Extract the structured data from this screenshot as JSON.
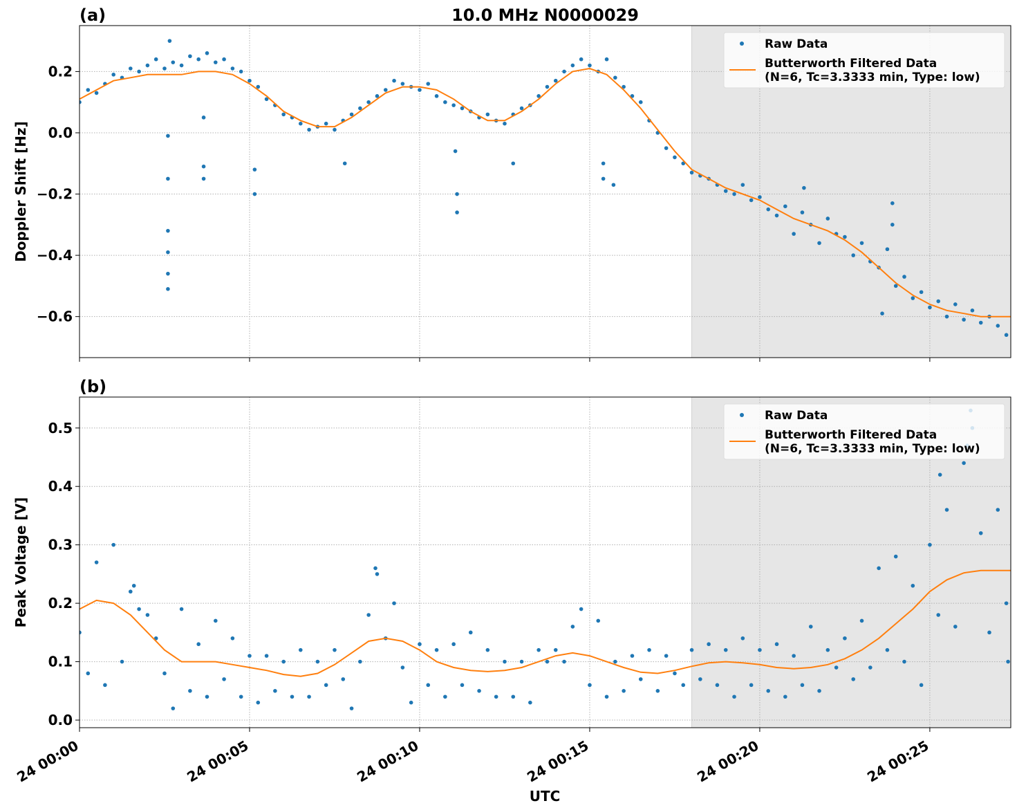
{
  "chart_data": [
    {
      "type": "scatter-line",
      "panel_label": "(a)",
      "title": "10.0 MHz N0000029",
      "y_label": "Doppler Shift [Hz]",
      "xlim": [
        0,
        27.38
      ],
      "ylim": [
        -0.734,
        0.35
      ],
      "xticks": [
        0,
        5,
        10,
        15,
        20,
        25
      ],
      "yticks": [
        {
          "value": -0.6,
          "label": "−0.6"
        },
        {
          "value": -0.4,
          "label": "−0.4"
        },
        {
          "value": -0.2,
          "label": "−0.2"
        },
        {
          "value": 0,
          "label": "0.0"
        },
        0.2
      ],
      "grid": true,
      "legend": "upper right",
      "highlight_xrange": [
        18,
        27.38
      ],
      "series": [
        {
          "name": "Raw Data",
          "color": "#1f77b4",
          "marker": "dot",
          "x": [
            0,
            0.25,
            0.5,
            0.75,
            1,
            1.25,
            1.5,
            1.75,
            2,
            2.25,
            2.5,
            2.75,
            3,
            3.25,
            3.5,
            3.75,
            4,
            4.25,
            4.5,
            4.75,
            5,
            5.25,
            5.5,
            5.75,
            6,
            6.25,
            6.5,
            6.75,
            7,
            7.25,
            7.5,
            7.75,
            8,
            8.25,
            8.5,
            8.75,
            9,
            9.25,
            9.5,
            9.75,
            10,
            10.25,
            10.5,
            10.75,
            11,
            11.25,
            11.5,
            11.75,
            12,
            12.25,
            12.5,
            12.75,
            13,
            13.25,
            13.5,
            13.75,
            14,
            14.25,
            14.5,
            14.75,
            15,
            15.25,
            15.5,
            15.75,
            16,
            16.25,
            16.5,
            16.75,
            17,
            17.25,
            17.5,
            17.75,
            18,
            18.25,
            18.5,
            18.75,
            19,
            19.25,
            19.5,
            19.75,
            20,
            20.25,
            20.5,
            20.75,
            21,
            21.25,
            21.5,
            21.75,
            22,
            22.25,
            22.5,
            22.75,
            23,
            23.25,
            23.5,
            23.75,
            24,
            24.25,
            24.5,
            24.75,
            25,
            25.25,
            25.5,
            25.75,
            26,
            26.25,
            26.5,
            26.75,
            27,
            27.25,
            2.6,
            2.6,
            2.6,
            2.6,
            2.6,
            2.6,
            3.65,
            3.65,
            3.65,
            5.15,
            5.15,
            7.8,
            11.1,
            11.1,
            11.05,
            12.75,
            15.4,
            15.4,
            15.7,
            21.3,
            23.6,
            23.9,
            23.9,
            2.65
          ],
          "values": [
            0.1,
            0.14,
            0.13,
            0.16,
            0.19,
            0.18,
            0.21,
            0.2,
            0.22,
            0.24,
            0.21,
            0.23,
            0.22,
            0.25,
            0.24,
            0.26,
            0.23,
            0.24,
            0.21,
            0.2,
            0.17,
            0.15,
            0.11,
            0.09,
            0.06,
            0.05,
            0.03,
            0.01,
            0.02,
            0.03,
            0.01,
            0.04,
            0.06,
            0.08,
            0.1,
            0.12,
            0.14,
            0.17,
            0.16,
            0.15,
            0.14,
            0.16,
            0.12,
            0.1,
            0.09,
            0.08,
            0.07,
            0.05,
            0.06,
            0.04,
            0.03,
            0.06,
            0.08,
            0.09,
            0.12,
            0.15,
            0.17,
            0.2,
            0.22,
            0.24,
            0.22,
            0.2,
            0.24,
            0.18,
            0.15,
            0.12,
            0.1,
            0.04,
            0.0,
            -0.05,
            -0.08,
            -0.1,
            -0.13,
            -0.14,
            -0.15,
            -0.17,
            -0.19,
            -0.2,
            -0.17,
            -0.22,
            -0.21,
            -0.25,
            -0.27,
            -0.24,
            -0.33,
            -0.26,
            -0.3,
            -0.36,
            -0.28,
            -0.33,
            -0.34,
            -0.4,
            -0.36,
            -0.42,
            -0.44,
            -0.38,
            -0.5,
            -0.47,
            -0.54,
            -0.52,
            -0.57,
            -0.55,
            -0.6,
            -0.56,
            -0.61,
            -0.58,
            -0.62,
            -0.6,
            -0.63,
            -0.66,
            -0.15,
            -0.32,
            -0.39,
            -0.46,
            -0.51,
            -0.01,
            -0.11,
            -0.15,
            0.05,
            -0.12,
            -0.2,
            -0.1,
            -0.2,
            -0.26,
            -0.06,
            -0.1,
            -0.1,
            -0.15,
            -0.17,
            -0.18,
            -0.59,
            -0.23,
            -0.3,
            0.3
          ]
        },
        {
          "name": "Butterworth Filtered Data\n(N=6, Tc=3.3333 min, Type: low)",
          "color": "#ff7f0e",
          "marker": "line",
          "x": [
            0,
            0.5,
            1,
            1.5,
            2,
            2.5,
            3,
            3.5,
            4,
            4.5,
            5,
            5.5,
            6,
            6.5,
            7,
            7.5,
            8,
            8.5,
            9,
            9.5,
            10,
            10.5,
            11,
            11.5,
            12,
            12.5,
            13,
            13.5,
            14,
            14.5,
            15,
            15.5,
            16,
            16.5,
            17,
            17.5,
            18,
            18.5,
            19,
            19.5,
            20,
            20.5,
            21,
            21.5,
            22,
            22.5,
            23,
            23.5,
            24,
            24.5,
            25,
            25.5,
            26,
            26.5,
            27,
            27.38
          ],
          "values": [
            0.11,
            0.14,
            0.17,
            0.18,
            0.19,
            0.19,
            0.19,
            0.2,
            0.2,
            0.19,
            0.16,
            0.12,
            0.07,
            0.04,
            0.02,
            0.02,
            0.05,
            0.09,
            0.13,
            0.15,
            0.15,
            0.14,
            0.11,
            0.07,
            0.04,
            0.04,
            0.07,
            0.11,
            0.16,
            0.2,
            0.21,
            0.19,
            0.14,
            0.08,
            0.01,
            -0.06,
            -0.12,
            -0.15,
            -0.18,
            -0.2,
            -0.22,
            -0.25,
            -0.28,
            -0.3,
            -0.32,
            -0.35,
            -0.39,
            -0.44,
            -0.49,
            -0.53,
            -0.56,
            -0.58,
            -0.59,
            -0.6,
            -0.6,
            -0.6
          ]
        }
      ]
    },
    {
      "type": "scatter-line",
      "panel_label": "(b)",
      "y_label": "Peak Voltage [V]",
      "x_label": "UTC",
      "xlim": [
        0,
        27.38
      ],
      "ylim": [
        -0.013,
        0.553
      ],
      "xticks": [
        {
          "value": 0,
          "label": "24 00:00"
        },
        {
          "value": 5,
          "label": "24 00:05"
        },
        {
          "value": 10,
          "label": "24 00:10"
        },
        {
          "value": 15,
          "label": "24 00:15"
        },
        {
          "value": 20,
          "label": "24 00:20"
        },
        {
          "value": 25,
          "label": "24 00:25"
        }
      ],
      "yticks": [
        {
          "value": 0,
          "label": "0.0"
        },
        0.1,
        0.2,
        0.3,
        0.4,
        0.5
      ],
      "grid": true,
      "legend": "upper right",
      "highlight_xrange": [
        18,
        27.38
      ],
      "series": [
        {
          "name": "Raw Data",
          "color": "#1f77b4",
          "marker": "dot",
          "x": [
            0,
            0.25,
            0.5,
            0.75,
            1,
            1.25,
            1.5,
            1.75,
            2,
            2.25,
            2.5,
            2.75,
            3,
            3.25,
            3.5,
            3.75,
            4,
            4.25,
            4.5,
            4.75,
            5,
            5.25,
            5.5,
            5.75,
            6,
            6.25,
            6.5,
            6.75,
            7,
            7.25,
            7.5,
            7.75,
            8,
            8.25,
            8.5,
            8.75,
            9,
            9.25,
            9.5,
            9.75,
            10,
            10.25,
            10.5,
            10.75,
            11,
            11.25,
            11.5,
            11.75,
            12,
            12.25,
            12.5,
            12.75,
            13,
            13.25,
            13.5,
            13.75,
            14,
            14.25,
            14.5,
            14.75,
            15,
            15.25,
            15.5,
            15.75,
            16,
            16.25,
            16.5,
            16.75,
            17,
            17.25,
            17.5,
            17.75,
            18,
            18.25,
            18.5,
            18.75,
            19,
            19.25,
            19.5,
            19.75,
            20,
            20.25,
            20.5,
            20.75,
            21,
            21.25,
            21.5,
            21.75,
            22,
            22.25,
            22.5,
            22.75,
            23,
            23.25,
            23.5,
            23.75,
            24,
            24.25,
            24.5,
            24.75,
            25,
            25.25,
            25.5,
            25.75,
            26,
            26.25,
            26.5,
            26.75,
            27,
            27.25,
            25.3,
            26.2,
            26.1,
            27.3,
            1.6,
            8.7
          ],
          "values": [
            0.15,
            0.08,
            0.27,
            0.06,
            0.3,
            0.1,
            0.22,
            0.19,
            0.18,
            0.14,
            0.08,
            0.02,
            0.19,
            0.05,
            0.13,
            0.04,
            0.17,
            0.07,
            0.14,
            0.04,
            0.11,
            0.03,
            0.11,
            0.05,
            0.1,
            0.04,
            0.12,
            0.04,
            0.1,
            0.06,
            0.12,
            0.07,
            0.02,
            0.1,
            0.18,
            0.25,
            0.14,
            0.2,
            0.09,
            0.03,
            0.13,
            0.06,
            0.12,
            0.04,
            0.13,
            0.06,
            0.15,
            0.05,
            0.12,
            0.04,
            0.1,
            0.04,
            0.1,
            0.03,
            0.12,
            0.1,
            0.12,
            0.1,
            0.16,
            0.19,
            0.06,
            0.17,
            0.04,
            0.1,
            0.05,
            0.11,
            0.07,
            0.12,
            0.05,
            0.11,
            0.08,
            0.06,
            0.12,
            0.07,
            0.13,
            0.06,
            0.12,
            0.04,
            0.14,
            0.06,
            0.12,
            0.05,
            0.13,
            0.04,
            0.11,
            0.06,
            0.16,
            0.05,
            0.12,
            0.09,
            0.14,
            0.07,
            0.17,
            0.09,
            0.26,
            0.12,
            0.28,
            0.1,
            0.23,
            0.06,
            0.3,
            0.18,
            0.36,
            0.16,
            0.44,
            0.5,
            0.32,
            0.15,
            0.36,
            0.2,
            0.42,
            0.53,
            0.47,
            0.1,
            0.23,
            0.26
          ]
        },
        {
          "name": "Butterworth Filtered Data\n(N=6, Tc=3.3333 min, Type: low)",
          "color": "#ff7f0e",
          "marker": "line",
          "x": [
            0,
            0.5,
            1,
            1.5,
            2,
            2.5,
            3,
            3.5,
            4,
            4.5,
            5,
            5.5,
            6,
            6.5,
            7,
            7.5,
            8,
            8.5,
            9,
            9.5,
            10,
            10.5,
            11,
            11.5,
            12,
            12.5,
            13,
            13.5,
            14,
            14.5,
            15,
            15.5,
            16,
            16.5,
            17,
            17.5,
            18,
            18.5,
            19,
            19.5,
            20,
            20.5,
            21,
            21.5,
            22,
            22.5,
            23,
            23.5,
            24,
            24.5,
            25,
            25.5,
            26,
            26.5,
            27,
            27.38
          ],
          "values": [
            0.19,
            0.205,
            0.2,
            0.18,
            0.15,
            0.12,
            0.1,
            0.1,
            0.1,
            0.095,
            0.09,
            0.085,
            0.078,
            0.075,
            0.08,
            0.095,
            0.115,
            0.135,
            0.14,
            0.135,
            0.12,
            0.1,
            0.09,
            0.085,
            0.083,
            0.085,
            0.09,
            0.1,
            0.11,
            0.115,
            0.11,
            0.1,
            0.09,
            0.082,
            0.08,
            0.085,
            0.092,
            0.098,
            0.1,
            0.098,
            0.095,
            0.09,
            0.088,
            0.09,
            0.095,
            0.105,
            0.12,
            0.14,
            0.165,
            0.19,
            0.22,
            0.24,
            0.252,
            0.256,
            0.256,
            0.256
          ]
        }
      ]
    }
  ]
}
